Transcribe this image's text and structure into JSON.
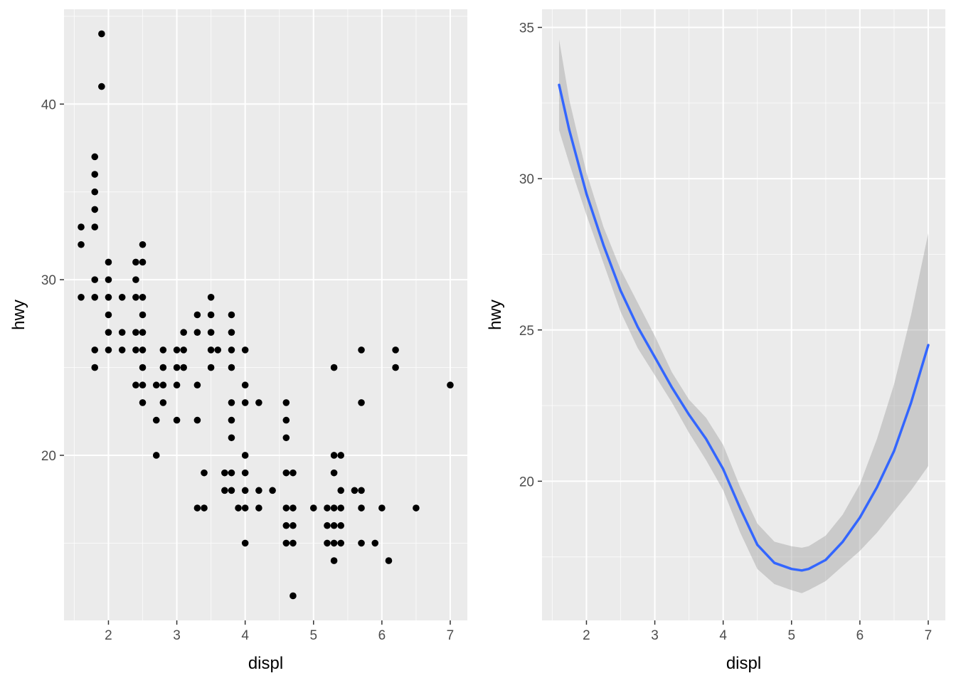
{
  "chart_data": [
    {
      "type": "scatter",
      "xlabel": "displ",
      "ylabel": "hwy",
      "xlim": [
        1.35,
        7.25
      ],
      "ylim": [
        10.6,
        45.4
      ],
      "x_ticks": [
        2,
        3,
        4,
        5,
        6,
        7
      ],
      "y_ticks": [
        20,
        30,
        40
      ],
      "grid": true,
      "points": [
        [
          1.9,
          44
        ],
        [
          1.9,
          41
        ],
        [
          1.8,
          37
        ],
        [
          1.8,
          36
        ],
        [
          1.8,
          35
        ],
        [
          1.8,
          34
        ],
        [
          1.8,
          33
        ],
        [
          1.6,
          33
        ],
        [
          1.6,
          32
        ],
        [
          1.6,
          29
        ],
        [
          1.8,
          30
        ],
        [
          1.8,
          29
        ],
        [
          1.8,
          26
        ],
        [
          1.8,
          25
        ],
        [
          2.0,
          31
        ],
        [
          2.0,
          30
        ],
        [
          2.0,
          29
        ],
        [
          2.0,
          28
        ],
        [
          2.0,
          27
        ],
        [
          2.0,
          26
        ],
        [
          2.2,
          29
        ],
        [
          2.2,
          27
        ],
        [
          2.2,
          26
        ],
        [
          2.4,
          31
        ],
        [
          2.4,
          30
        ],
        [
          2.4,
          29
        ],
        [
          2.4,
          27
        ],
        [
          2.4,
          26
        ],
        [
          2.4,
          24
        ],
        [
          2.5,
          32
        ],
        [
          2.5,
          31
        ],
        [
          2.5,
          29
        ],
        [
          2.5,
          28
        ],
        [
          2.5,
          27
        ],
        [
          2.5,
          26
        ],
        [
          2.5,
          25
        ],
        [
          2.5,
          24
        ],
        [
          2.5,
          23
        ],
        [
          2.7,
          24
        ],
        [
          2.7,
          22
        ],
        [
          2.7,
          20
        ],
        [
          2.8,
          26
        ],
        [
          2.8,
          25
        ],
        [
          2.8,
          24
        ],
        [
          2.8,
          23
        ],
        [
          3.0,
          26
        ],
        [
          3.0,
          25
        ],
        [
          3.0,
          24
        ],
        [
          3.0,
          22
        ],
        [
          3.1,
          27
        ],
        [
          3.1,
          26
        ],
        [
          3.1,
          25
        ],
        [
          3.3,
          28
        ],
        [
          3.3,
          27
        ],
        [
          3.3,
          24
        ],
        [
          3.3,
          22
        ],
        [
          3.3,
          17
        ],
        [
          3.4,
          19
        ],
        [
          3.4,
          17
        ],
        [
          3.5,
          29
        ],
        [
          3.5,
          28
        ],
        [
          3.5,
          27
        ],
        [
          3.5,
          26
        ],
        [
          3.5,
          25
        ],
        [
          3.6,
          26
        ],
        [
          3.7,
          19
        ],
        [
          3.7,
          18
        ],
        [
          3.8,
          28
        ],
        [
          3.8,
          27
        ],
        [
          3.8,
          26
        ],
        [
          3.8,
          25
        ],
        [
          3.8,
          23
        ],
        [
          3.8,
          22
        ],
        [
          3.8,
          21
        ],
        [
          3.8,
          19
        ],
        [
          3.8,
          18
        ],
        [
          3.9,
          17
        ],
        [
          4.0,
          26
        ],
        [
          4.0,
          24
        ],
        [
          4.0,
          23
        ],
        [
          4.0,
          20
        ],
        [
          4.0,
          19
        ],
        [
          4.0,
          18
        ],
        [
          4.0,
          17
        ],
        [
          4.0,
          15
        ],
        [
          4.2,
          23
        ],
        [
          4.2,
          18
        ],
        [
          4.2,
          17
        ],
        [
          4.4,
          18
        ],
        [
          4.6,
          23
        ],
        [
          4.6,
          22
        ],
        [
          4.6,
          21
        ],
        [
          4.6,
          19
        ],
        [
          4.6,
          17
        ],
        [
          4.6,
          16
        ],
        [
          4.6,
          15
        ],
        [
          4.7,
          19
        ],
        [
          4.7,
          17
        ],
        [
          4.7,
          16
        ],
        [
          4.7,
          15
        ],
        [
          4.7,
          12
        ],
        [
          5.0,
          17
        ],
        [
          5.2,
          17
        ],
        [
          5.2,
          16
        ],
        [
          5.2,
          15
        ],
        [
          5.3,
          25
        ],
        [
          5.3,
          20
        ],
        [
          5.3,
          19
        ],
        [
          5.3,
          17
        ],
        [
          5.3,
          16
        ],
        [
          5.3,
          15
        ],
        [
          5.3,
          14
        ],
        [
          5.4,
          20
        ],
        [
          5.4,
          18
        ],
        [
          5.4,
          17
        ],
        [
          5.4,
          16
        ],
        [
          5.4,
          15
        ],
        [
          5.6,
          18
        ],
        [
          5.7,
          26
        ],
        [
          5.7,
          23
        ],
        [
          5.7,
          18
        ],
        [
          5.7,
          17
        ],
        [
          5.7,
          15
        ],
        [
          5.9,
          15
        ],
        [
          6.0,
          17
        ],
        [
          6.1,
          14
        ],
        [
          6.2,
          26
        ],
        [
          6.2,
          25
        ],
        [
          6.5,
          17
        ],
        [
          7.0,
          24
        ]
      ]
    },
    {
      "type": "line",
      "xlabel": "displ",
      "ylabel": "hwy",
      "xlim": [
        1.35,
        7.25
      ],
      "ylim": [
        15.4,
        35.6
      ],
      "x_ticks": [
        2,
        3,
        4,
        5,
        6,
        7
      ],
      "y_ticks": [
        20,
        25,
        30,
        35
      ],
      "grid": true,
      "series": [
        {
          "x": [
            1.6,
            1.75,
            2.0,
            2.25,
            2.5,
            2.75,
            3.0,
            3.25,
            3.5,
            3.75,
            4.0,
            4.25,
            4.5,
            4.75,
            5.0,
            5.15,
            5.25,
            5.5,
            5.75,
            6.0,
            6.25,
            6.5,
            6.75,
            7.0
          ],
          "y": [
            33.1,
            31.6,
            29.5,
            27.8,
            26.3,
            25.1,
            24.1,
            23.1,
            22.2,
            21.4,
            20.4,
            19.1,
            17.9,
            17.3,
            17.1,
            17.05,
            17.1,
            17.4,
            18.0,
            18.8,
            19.8,
            21.0,
            22.6,
            24.5
          ]
        }
      ],
      "band": {
        "lower": [
          31.6,
          30.5,
          28.8,
          27.2,
          25.6,
          24.4,
          23.5,
          22.6,
          21.6,
          20.7,
          19.7,
          18.3,
          17.1,
          16.6,
          16.4,
          16.3,
          16.4,
          16.7,
          17.2,
          17.7,
          18.3,
          19.0,
          19.7,
          20.5
        ],
        "upper": [
          34.6,
          32.6,
          30.2,
          28.4,
          27.0,
          25.9,
          24.8,
          23.6,
          22.7,
          22.1,
          21.2,
          19.8,
          18.6,
          18.0,
          17.85,
          17.8,
          17.85,
          18.2,
          18.9,
          19.9,
          21.4,
          23.2,
          25.5,
          28.2
        ]
      }
    }
  ]
}
